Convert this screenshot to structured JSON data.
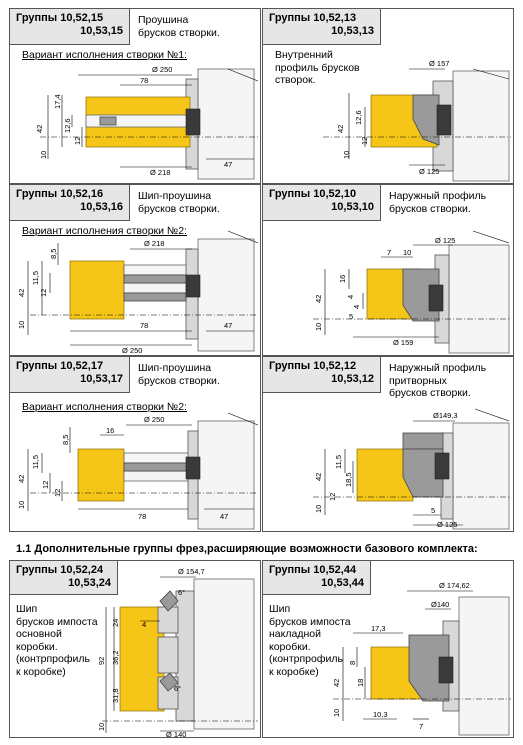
{
  "panels": [
    {
      "title1": "Группы 10,52,15",
      "title2": "10,53,15",
      "desc": "Проушина\nбрусков створки.",
      "variant": "Вариант исполнения створки №1:",
      "dims": {
        "d_top": "Ø 250",
        "d_bot": "Ø 218",
        "len_top": "78",
        "len_bot": "47",
        "h_total": "42",
        "h_a": "17,4",
        "h_b": "12,6",
        "h_c": "12",
        "h_base": "10"
      }
    },
    {
      "title1": "Группы 10,52,13",
      "title2": "10,53,13",
      "desc": "Внутренний\nпрофиль брусков\nстворок.",
      "variant": "",
      "dims": {
        "d_top": "Ø 157",
        "d_bot": "Ø 125",
        "h_total": "42",
        "h_a": "12,6",
        "h_c": "12",
        "h_base": "10"
      }
    },
    {
      "title1": "Группы 10,52,16",
      "title2": "10,53,16",
      "desc": "Шип-проушина\nбрусков створки.",
      "variant": "Вариант исполнения створки №2:",
      "dims": {
        "d_top": "Ø 218",
        "d_bot": "Ø 250",
        "len_top": "78",
        "len_bot": "47",
        "h_total": "42",
        "h_a": "8,5",
        "h_b": "11,5",
        "h_c": "12",
        "h_base": "10"
      }
    },
    {
      "title1": "Группы 10,52,10",
      "title2": "10,53,10",
      "desc": "Наружный профиль\nбрусков створки.",
      "variant": "",
      "dims": {
        "d_top": "Ø 125",
        "d_bot": "Ø 159",
        "w_a": "7",
        "w_b": "10",
        "h_total": "42",
        "h_a": "16",
        "h_b": "4",
        "h_c": "4",
        "h_d": "5",
        "h_base": "10"
      }
    },
    {
      "title1": "Группы 10,52,17",
      "title2": "10,53,17",
      "desc": "Шип-проушина\nбрусков створки.",
      "variant": "Вариант исполнения створки №2:",
      "dims": {
        "d_top": "Ø 250",
        "len_a": "16",
        "len_top": "78",
        "len_bot": "47",
        "h_total": "42",
        "h_a": "8,5",
        "h_b": "11,5",
        "h_c": "12",
        "h_d": "12",
        "h_base": "10"
      }
    },
    {
      "title1": "Группы 10,52,12",
      "title2": "10,53,12",
      "desc": "Наружный профиль\nпритворных\nбрусков створки.",
      "variant": "",
      "dims": {
        "d_top": "Ø149,3",
        "d_bot": "Ø 125",
        "h_total": "42",
        "h_a": "11,5",
        "h_b": "18,5",
        "h_c": "12",
        "h_base": "10",
        "w_a": "5"
      }
    },
    {
      "title1": "Группы 10,52,24",
      "title2": "10,53,24",
      "desc": "Шип\nбрусков импоста\nосновной\nкоробки.\n(контрпрофиль\nк коробке)",
      "variant": "",
      "dims": {
        "d_top": "Ø 154,7",
        "d_bot": "Ø 140",
        "ang_a": "6°",
        "ang_b": "6°",
        "h_total": "92",
        "h_a": "24",
        "h_b": "36,2",
        "h_c": "31,8",
        "h_d": "4",
        "h_base": "10"
      }
    },
    {
      "title1": "Группы 10,52,44",
      "title2": "10,53,44",
      "desc": "Шип\nбрусков импоста\nнакладной\nкоробки.\n(контрпрофиль\nк коробке)",
      "variant": "",
      "dims": {
        "d_top": "Ø 174,62",
        "d_mid": "Ø140",
        "h_a": "17,3",
        "h_total": "42",
        "h_b": "8",
        "h_c": "18",
        "h_base": "10",
        "w_a": "10,3",
        "w_b": "7"
      }
    }
  ],
  "section_title": "1.1  Дополнительные группы фрез,расширяющие возможности базового комплекта:"
}
